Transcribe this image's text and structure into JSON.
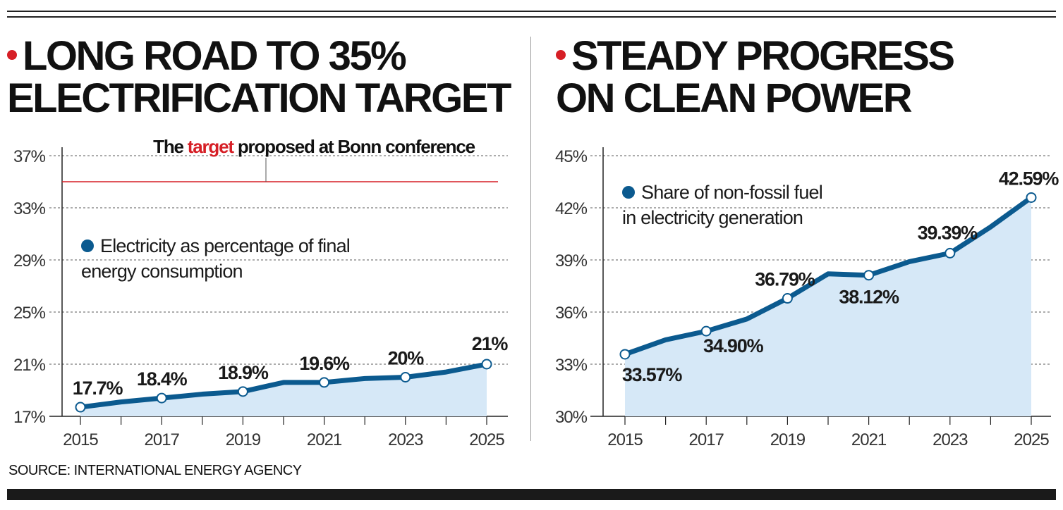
{
  "colors": {
    "line": "#0b5a8f",
    "fill": "#d6e8f7",
    "accent": "#d61f26",
    "grid": "#7a7a7a"
  },
  "source": "SOURCE: INTERNATIONAL ENERGY AGENCY",
  "chart_data": [
    {
      "type": "area",
      "title_line1": "LONG ROAD TO 35%",
      "title_line2": "ELECTRIFICATION TARGET",
      "x": [
        2015,
        2016,
        2017,
        2018,
        2019,
        2020,
        2021,
        2022,
        2023,
        2024,
        2025
      ],
      "x_tick_labels": [
        "2015",
        "2017",
        "2019",
        "2021",
        "2023",
        "2025"
      ],
      "y_ticks": [
        17,
        21,
        25,
        29,
        33,
        37
      ],
      "y_tick_labels": [
        "17%",
        "21%",
        "25%",
        "29%",
        "33%",
        "37%"
      ],
      "ylim": [
        17,
        37
      ],
      "grid": true,
      "series": [
        {
          "values": [
            17.7,
            18.1,
            18.4,
            18.7,
            18.9,
            19.6,
            19.6,
            19.9,
            20.0,
            20.4,
            21.0
          ],
          "markers": [
            2015,
            2017,
            2019,
            2021,
            2023,
            2025
          ],
          "marker_labels": [
            "17.7%",
            "18.4%",
            "18.9%",
            "19.6%",
            "20%",
            "21%"
          ]
        }
      ],
      "legend_line1": "Electricity as percentage of final",
      "legend_line2": "energy consumption",
      "target_line": {
        "value": 35,
        "label_before": "The ",
        "label_highlight": "target",
        "label_after": " proposed at Bonn conference"
      }
    },
    {
      "type": "area",
      "title_line1": "STEADY PROGRESS",
      "title_line2": "ON CLEAN POWER",
      "x": [
        2015,
        2016,
        2017,
        2018,
        2019,
        2020,
        2021,
        2022,
        2023,
        2024,
        2025
      ],
      "x_tick_labels": [
        "2015",
        "2017",
        "2019",
        "2021",
        "2023",
        "2025"
      ],
      "y_ticks": [
        30,
        33,
        36,
        39,
        42,
        45
      ],
      "y_tick_labels": [
        "30%",
        "33%",
        "36%",
        "39%",
        "42%",
        "45%"
      ],
      "ylim": [
        30,
        45
      ],
      "grid": true,
      "series": [
        {
          "values": [
            33.57,
            34.4,
            34.9,
            35.6,
            36.79,
            38.2,
            38.12,
            38.9,
            39.39,
            40.9,
            42.59
          ],
          "markers": [
            2015,
            2017,
            2019,
            2021,
            2023,
            2025
          ],
          "marker_labels": [
            "33.57%",
            "34.90%",
            "36.79%",
            "38.12%",
            "39.39%",
            "42.59%"
          ]
        }
      ],
      "legend_line1": "Share of non-fossil fuel",
      "legend_line2": "in electricity generation"
    }
  ]
}
